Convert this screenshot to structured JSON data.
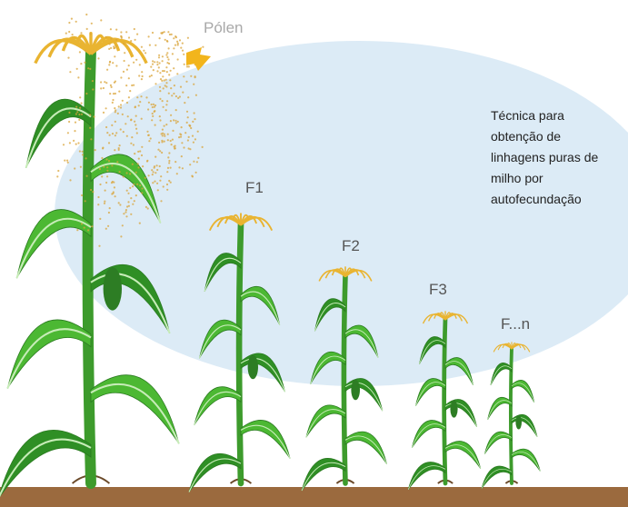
{
  "pollen_label": "Pólen",
  "generations": [
    "F1",
    "F2",
    "F3",
    "F...n"
  ],
  "caption": [
    "Técnica para",
    "obtenção de",
    "linhagens puras de",
    "milho por",
    "autofecundação"
  ]
}
